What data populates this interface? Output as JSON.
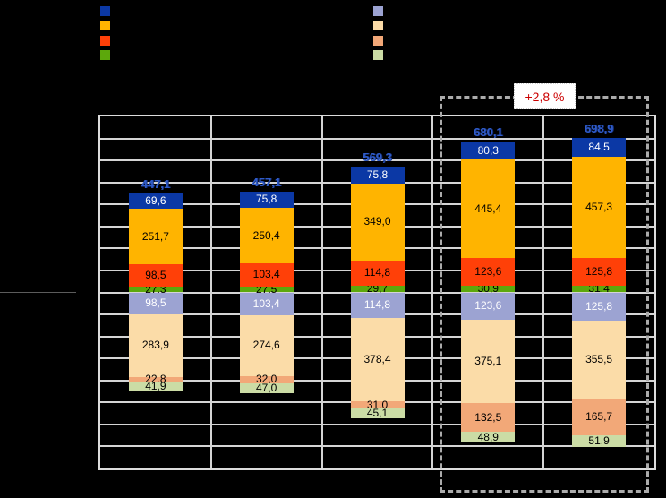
{
  "chart_data": {
    "type": "bar",
    "subtype": "diverging-stacked",
    "title": "",
    "xlabel": "",
    "ylabel": "",
    "bar_count": 5,
    "totals": [
      "447,1",
      "457,1",
      "569,3",
      "680,1",
      "698,9"
    ],
    "totals_color": "#2F5BC8",
    "series_above": [
      {
        "name": "dark-blue-segment",
        "color": "#0B38A5",
        "label_color": "#FFFFFF",
        "values": [
          "69,6",
          "75,8",
          "75,8",
          "80,3",
          "84,5"
        ]
      },
      {
        "name": "amber-segment",
        "color": "#FFB400",
        "label_color": "#000000",
        "values": [
          "251,7",
          "250,4",
          "349,0",
          "445,4",
          "457,3"
        ]
      },
      {
        "name": "orange-red-segment",
        "color": "#FF4008",
        "label_color": "#000000",
        "values": [
          "98,5",
          "103,4",
          "114,8",
          "123,6",
          "125,8"
        ]
      },
      {
        "name": "green-segment",
        "color": "#5CA80C",
        "label_color": "#000000",
        "values": [
          "27,3",
          "27,5",
          "29,7",
          "30,9",
          "31,4"
        ]
      }
    ],
    "series_below": [
      {
        "name": "lavender-segment",
        "color": "#9CA3D2",
        "label_color": "#FFFFFF",
        "values": [
          "98,5",
          "103,4",
          "114,8",
          "123,6",
          "125,8"
        ]
      },
      {
        "name": "cream-segment",
        "color": "#FBDCA8",
        "label_color": "#000000",
        "values": [
          "283,9",
          "274,6",
          "378,4",
          "375,1",
          "355,5"
        ]
      },
      {
        "name": "peach-segment",
        "color": "#F2A878",
        "label_color": "#000000",
        "values": [
          "22,8",
          "32,0",
          "31,0",
          "132,5",
          "165,7"
        ]
      },
      {
        "name": "light-green-segment",
        "color": "#CBDCA5",
        "label_color": "#000000",
        "values": [
          "41,9",
          "47,0",
          "45,1",
          "48,9",
          "51,9"
        ]
      }
    ],
    "annotation": "+2,8 %",
    "annotation_color": "#CC0000",
    "axis": {
      "grid": true,
      "gridline_step_units": 100,
      "units_above_zero": 800,
      "units_below_zero": 800,
      "zero_line_tick": true
    },
    "highlight": {
      "style": "dashed-box",
      "covers_bars": [
        4,
        5
      ]
    }
  },
  "legend": {
    "left_group_swatches": [
      "dark-blue",
      "amber",
      "orange-red",
      "green"
    ],
    "right_group_swatches": [
      "lavender",
      "cream",
      "peach",
      "light-green"
    ]
  }
}
